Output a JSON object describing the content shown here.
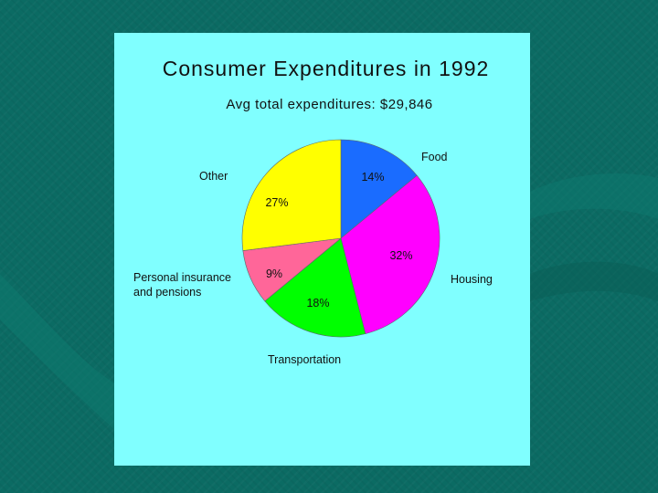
{
  "chart_data": {
    "type": "pie",
    "title": "Consumer Expenditures in 1992",
    "subtitle": "Avg total expenditures: $29,846",
    "slices": [
      {
        "label": "Food",
        "value": 14,
        "value_label": "14%",
        "color": "#1a6cff"
      },
      {
        "label": "Housing",
        "value": 32,
        "value_label": "32%",
        "color": "#ff00ff"
      },
      {
        "label": "Transportation",
        "value": 18,
        "value_label": "18%",
        "color": "#00ff00"
      },
      {
        "label": "Personal insurance and pensions",
        "value": 9,
        "value_label": "9%",
        "color": "#ff6699"
      },
      {
        "label": "Other",
        "value": 27,
        "value_label": "27%",
        "color": "#ffff00"
      }
    ],
    "start_position": "12 o'clock",
    "direction": "clockwise"
  },
  "colors": {
    "background": "#0b6b63",
    "panel": "#80ffff"
  }
}
